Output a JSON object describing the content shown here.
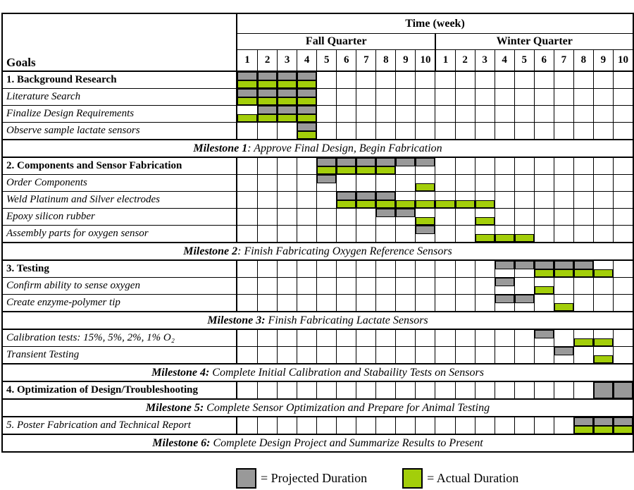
{
  "chart_data": {
    "type": "gantt",
    "title": "Time (week)",
    "goals_header": "Goals",
    "quarters": [
      {
        "label": "Fall Quarter",
        "weeks": [
          "1",
          "2",
          "3",
          "4",
          "5",
          "6",
          "7",
          "8",
          "9",
          "10"
        ]
      },
      {
        "label": "Winter Quarter",
        "weeks": [
          "1",
          "2",
          "3",
          "4",
          "5",
          "6",
          "7",
          "8",
          "9",
          "10"
        ]
      }
    ],
    "colors": {
      "projected": "#999999",
      "actual": "#A3CE0A",
      "grid": "#000000"
    },
    "note": "week indices 0-9 = Fall weeks 1-10, 10-19 = Winter weeks 1-10; ranges inclusive",
    "rows": [
      {
        "type": "task",
        "label": "1. Background Research",
        "style": "bold",
        "projected": [
          [
            0,
            3
          ]
        ],
        "actual": [
          [
            0,
            3
          ]
        ]
      },
      {
        "type": "task",
        "label": "Literature Search",
        "style": "italic",
        "projected": [
          [
            0,
            3
          ]
        ],
        "actual": [
          [
            0,
            3
          ]
        ]
      },
      {
        "type": "task",
        "label": "Finalize Design Requirements",
        "style": "italic",
        "projected": [
          [
            1,
            3
          ]
        ],
        "actual": [
          [
            0,
            3
          ]
        ]
      },
      {
        "type": "task",
        "label": "Observe sample lactate sensors",
        "style": "italic",
        "projected": [
          [
            3,
            3
          ]
        ],
        "actual": [
          [
            3,
            3
          ]
        ]
      },
      {
        "type": "milestone",
        "bold": "Milestone 1",
        "rest": ": Approve Final Design, Begin Fabrication"
      },
      {
        "type": "task",
        "label": "2. Components and Sensor Fabrication",
        "style": "bold",
        "projected": [
          [
            4,
            9
          ]
        ],
        "actual": [
          [
            4,
            7
          ]
        ]
      },
      {
        "type": "task",
        "label": "Order Components",
        "style": "italic",
        "projected": [
          [
            4,
            4
          ]
        ],
        "actual": [
          [
            9,
            9
          ]
        ]
      },
      {
        "type": "task",
        "label": "Weld Platinum and Silver electrodes",
        "style": "italic",
        "projected": [
          [
            5,
            7
          ]
        ],
        "actual": [
          [
            5,
            12
          ]
        ]
      },
      {
        "type": "task",
        "label": "Epoxy silicon rubber",
        "style": "italic",
        "projected": [
          [
            7,
            8
          ]
        ],
        "actual": [
          [
            9,
            9
          ],
          [
            12,
            12
          ]
        ]
      },
      {
        "type": "task",
        "label": "Assembly parts for oxygen sensor",
        "style": "italic",
        "projected": [
          [
            9,
            9
          ]
        ],
        "actual": [
          [
            12,
            14
          ]
        ]
      },
      {
        "type": "milestone",
        "bold": "Milestone 2",
        "rest": ": Finish Fabricating Oxygen Reference Sensors"
      },
      {
        "type": "task",
        "label": "3. Testing",
        "style": "bold",
        "projected": [
          [
            13,
            17
          ]
        ],
        "actual": [
          [
            15,
            18
          ]
        ]
      },
      {
        "type": "task",
        "label": "Confirm ability to sense oxygen",
        "style": "italic",
        "projected": [
          [
            13,
            13
          ]
        ],
        "actual": [
          [
            15,
            15
          ]
        ]
      },
      {
        "type": "task",
        "label": "Create enzyme-polymer tip",
        "style": "italic",
        "projected": [
          [
            13,
            14
          ]
        ],
        "actual": [
          [
            16,
            16
          ]
        ]
      },
      {
        "type": "milestone",
        "bold": "Milestone 3:",
        "rest": " Finish Fabricating Lactate Sensors"
      },
      {
        "type": "task",
        "label": "Calibration tests: 15%, 5%, 2%, 1% O₂",
        "style": "italic",
        "projected": [
          [
            15,
            15
          ]
        ],
        "actual": [
          [
            17,
            18
          ]
        ]
      },
      {
        "type": "task",
        "label": "Transient Testing",
        "style": "italic",
        "projected": [
          [
            16,
            16
          ]
        ],
        "actual": [
          [
            18,
            18
          ]
        ]
      },
      {
        "type": "milestone",
        "bold": "Milestone 4:",
        "rest": " Complete Initial Calibration and Stabaility Tests on Sensors"
      },
      {
        "type": "task",
        "label": "4. Optimization of Design/Troubleshooting",
        "style": "bold",
        "full": [
          [
            18,
            19
          ]
        ]
      },
      {
        "type": "milestone",
        "bold": "Milestone 5:",
        "rest": " Complete Sensor Optimization and Prepare for Animal Testing"
      },
      {
        "type": "task",
        "label": "5. Poster Fabrication and Technical Report",
        "style": "italic",
        "projected": [
          [
            17,
            19
          ]
        ],
        "actual": [
          [
            17,
            19
          ]
        ]
      },
      {
        "type": "milestone",
        "bold": "Milestone 6:",
        "rest": " Complete Design Project and Summarize Results to Present"
      }
    ],
    "legend": [
      {
        "key": "projected",
        "label": "= Projected Duration"
      },
      {
        "key": "actual",
        "label": "= Actual Duration"
      }
    ]
  }
}
